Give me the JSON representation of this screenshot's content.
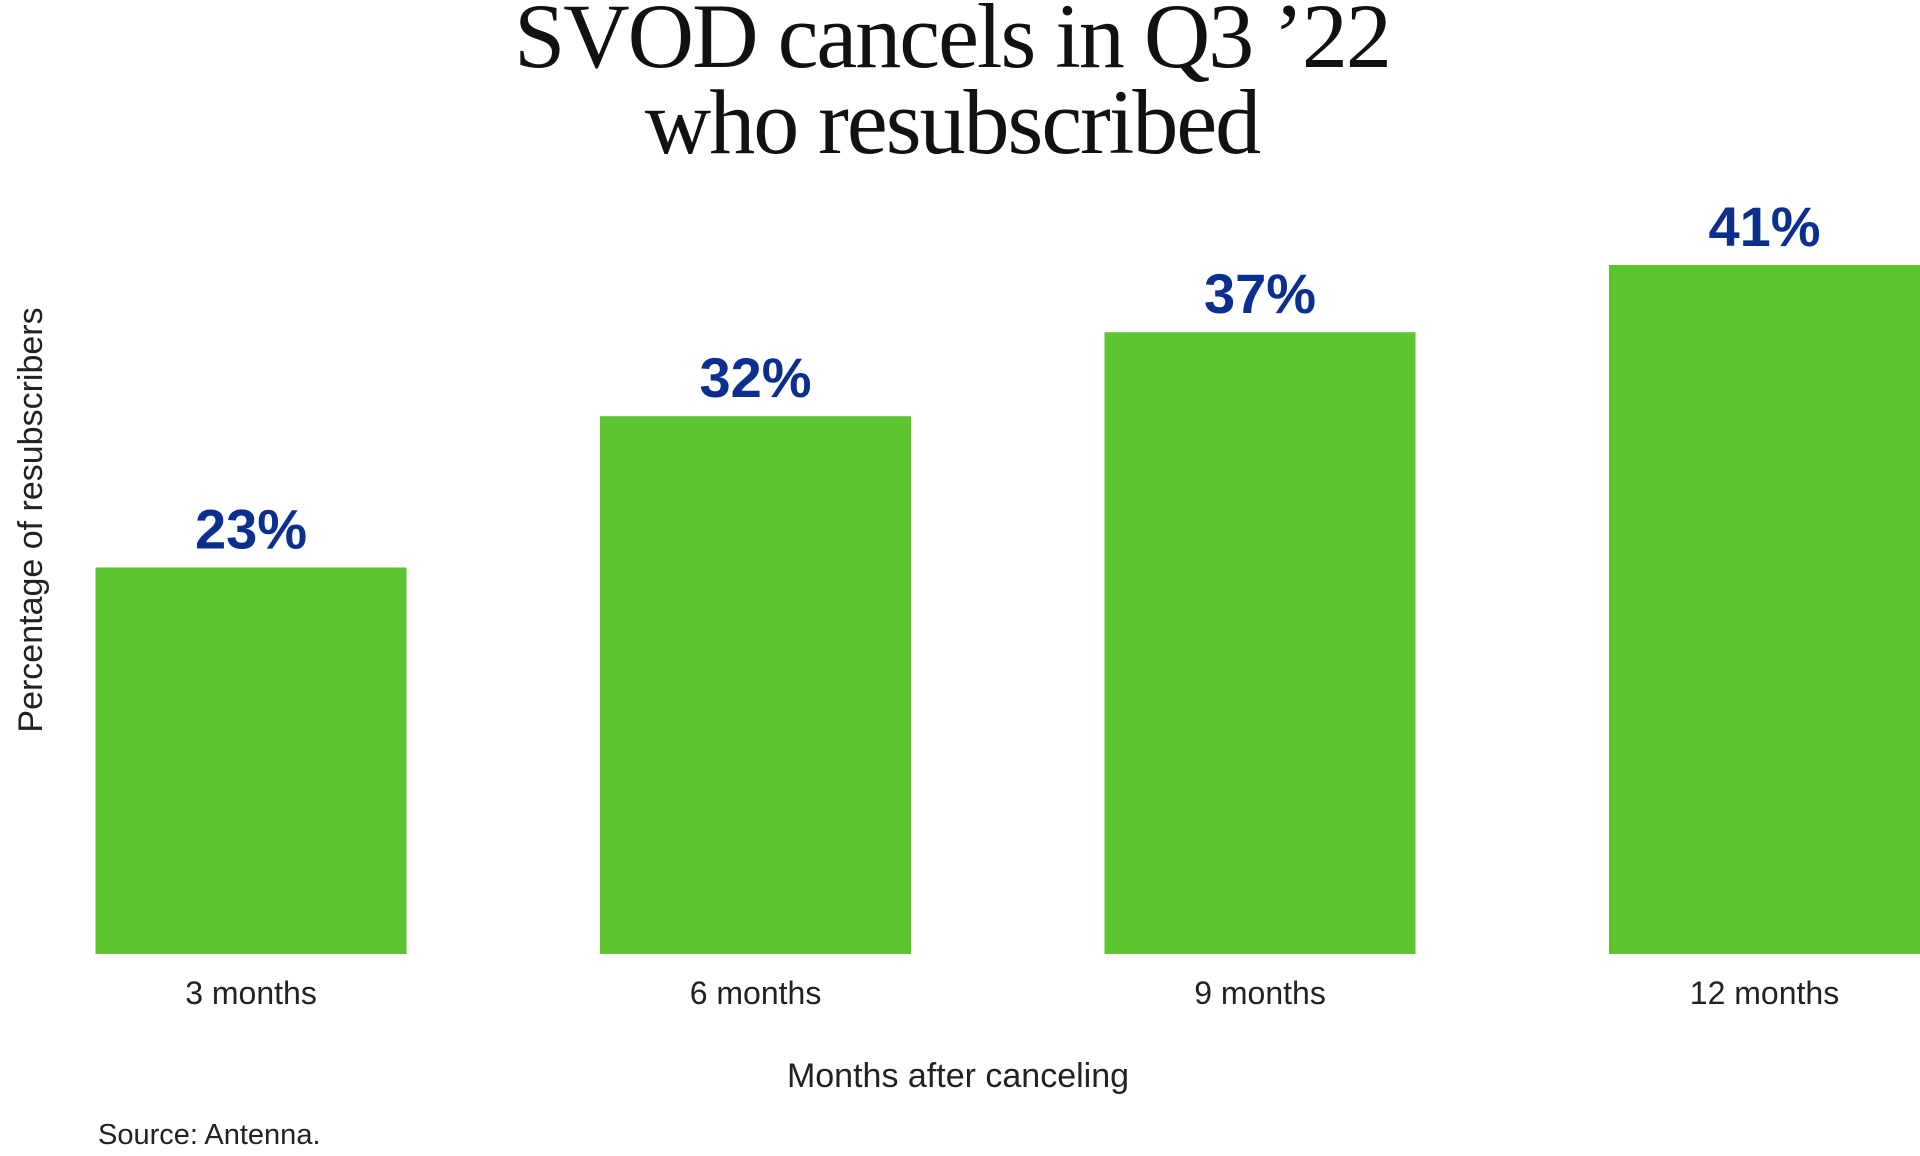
{
  "chart_data": {
    "type": "bar",
    "title": [
      "SVOD cancels in Q3 ’22",
      "who resubscribed"
    ],
    "categories": [
      "3 months",
      "6 months",
      "9 months",
      "12 months"
    ],
    "values": [
      23,
      32,
      37,
      41
    ],
    "value_labels": [
      "23%",
      "32%",
      "37%",
      "41%"
    ],
    "color": "#5dc530",
    "x_label": "Months after canceling",
    "y_label": "Percentage of resubscribers",
    "source": "Source: Antenna."
  }
}
